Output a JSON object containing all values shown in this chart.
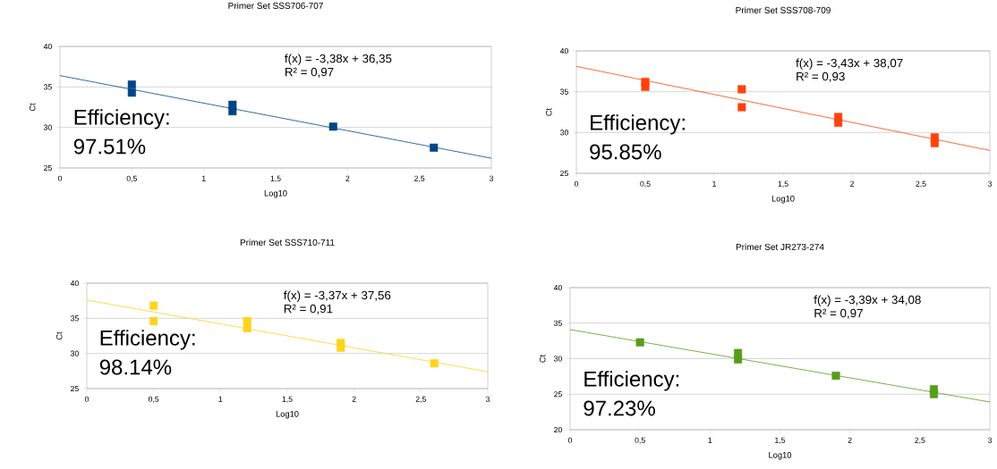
{
  "chart_data": [
    {
      "type": "scatter",
      "title": "Primer Set SSS706-707",
      "xlabel": "Log10",
      "ylabel": "Ct",
      "xlim": [
        0,
        3
      ],
      "ylim": [
        25,
        40
      ],
      "xticks": [
        0,
        {
          "value": 0.5,
          "label": "0,5"
        },
        1,
        {
          "value": 1.5,
          "label": "1,5"
        },
        2,
        {
          "value": 2.5,
          "label": "2,5"
        },
        3
      ],
      "yticks": [
        25,
        30,
        35,
        40
      ],
      "grid": "y",
      "series": [
        {
          "color": "#004586",
          "marker": "square",
          "x": [
            0.5,
            0.5,
            1.2,
            1.2,
            1.9,
            2.6
          ],
          "values": [
            34.3,
            35.3,
            32.0,
            32.8,
            30.1,
            27.5
          ]
        },
        {
          "type": "line",
          "marker": "none",
          "color": "#004586",
          "x": [
            0,
            3
          ],
          "values": [
            36.4,
            26.2
          ]
        }
      ],
      "annotations": [
        "f(x) = -3,38x + 36,35",
        "R² = 0,97",
        "Efficiency:",
        "97.51%"
      ]
    },
    {
      "type": "scatter",
      "title": "Primer Set SSS708-709",
      "xlabel": "Log10",
      "ylabel": "Ct",
      "xlim": [
        0,
        3
      ],
      "ylim": [
        25,
        40
      ],
      "xticks": [
        0,
        {
          "value": 0.5,
          "label": "0,5"
        },
        1,
        {
          "value": 1.5,
          "label": "1,5"
        },
        2,
        {
          "value": 2.5,
          "label": "2,5"
        },
        3
      ],
      "yticks": [
        25,
        30,
        35,
        40
      ],
      "grid": "y",
      "series": [
        {
          "color": "#ff420e",
          "marker": "square",
          "x": [
            0.5,
            0.5,
            1.2,
            1.2,
            1.9,
            1.9,
            2.6,
            2.6
          ],
          "values": [
            35.6,
            36.2,
            35.3,
            33.1,
            31.2,
            31.9,
            28.7,
            29.4
          ]
        },
        {
          "type": "line",
          "marker": "none",
          "color": "#ff420e",
          "x": [
            0,
            3
          ],
          "values": [
            38.1,
            27.8
          ]
        }
      ],
      "annotations": [
        "f(x) = -3,43x + 38,07",
        "R² = 0,93",
        "Efficiency:",
        "95.85%"
      ]
    },
    {
      "type": "scatter",
      "title": "Primer Set SSS710-711",
      "xlabel": "Log10",
      "ylabel": "Ct",
      "xlim": [
        0,
        3
      ],
      "ylim": [
        25,
        40
      ],
      "xticks": [
        0,
        {
          "value": 0.5,
          "label": "0,5"
        },
        1,
        {
          "value": 1.5,
          "label": "1,5"
        },
        2,
        {
          "value": 2.5,
          "label": "2,5"
        },
        3
      ],
      "yticks": [
        25,
        30,
        35,
        40
      ],
      "grid": "y",
      "series": [
        {
          "color": "#ffd320",
          "marker": "square",
          "x": [
            0.5,
            0.5,
            1.2,
            1.2,
            1.9,
            1.9,
            2.6
          ],
          "values": [
            36.8,
            34.6,
            34.6,
            33.6,
            30.8,
            31.5,
            28.6
          ]
        },
        {
          "type": "line",
          "marker": "none",
          "color": "#ffd320",
          "x": [
            0,
            3
          ],
          "values": [
            37.6,
            27.4
          ]
        }
      ],
      "annotations": [
        "f(x) = -3,37x + 37,56",
        "R² = 0,91",
        "Efficiency:",
        "98.14%"
      ]
    },
    {
      "type": "scatter",
      "title": "Primer Set JR273-274",
      "xlabel": "Log10",
      "ylabel": "Ct",
      "xlim": [
        0,
        3
      ],
      "ylim": [
        20,
        40
      ],
      "xticks": [
        0,
        {
          "value": 0.5,
          "label": "0,5"
        },
        1,
        {
          "value": 1.5,
          "label": "1,5"
        },
        2,
        {
          "value": 2.5,
          "label": "2,5"
        },
        3
      ],
      "yticks": [
        20,
        25,
        30,
        35,
        40
      ],
      "grid": "y",
      "series": [
        {
          "color": "#579d1c",
          "marker": "square",
          "x": [
            0.5,
            1.2,
            1.2,
            1.9,
            2.6,
            2.6
          ],
          "values": [
            32.3,
            29.9,
            30.8,
            27.6,
            25.0,
            25.7
          ]
        },
        {
          "type": "line",
          "marker": "none",
          "color": "#579d1c",
          "x": [
            0,
            3
          ],
          "values": [
            34.1,
            23.9
          ]
        }
      ],
      "annotations": [
        "f(x) = -3,39x + 34,08",
        "R² = 0,97",
        "Efficiency:",
        "97.23%"
      ]
    }
  ]
}
